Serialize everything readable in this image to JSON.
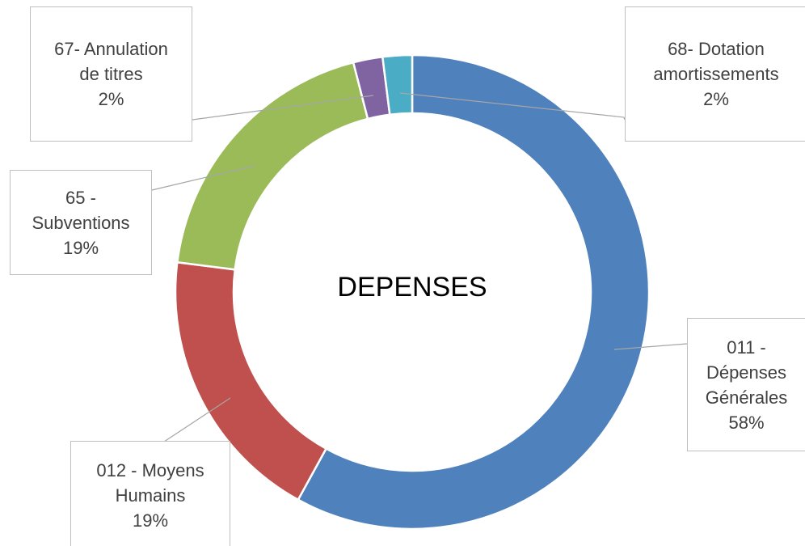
{
  "chart_data": {
    "type": "donut",
    "title": "DEPENSES",
    "categories": [
      "011 - Dépenses Générales",
      "012 - Moyens Humains",
      "65 - Subventions",
      "67- Annulation de titres",
      "68- Dotation amortissements"
    ],
    "values": [
      58,
      19,
      19,
      2,
      2
    ],
    "value_labels": [
      "58%",
      "19%",
      "19%",
      "2%",
      "2%"
    ],
    "colors": [
      "#4f81bd",
      "#c0504d",
      "#9bbb59",
      "#8064a2",
      "#4bacc6"
    ]
  }
}
